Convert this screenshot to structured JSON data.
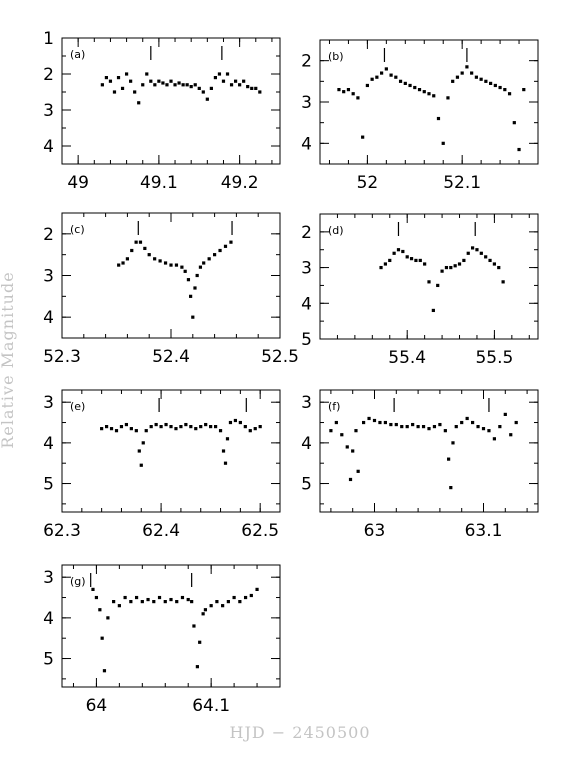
{
  "figure": {
    "xlabel": "HJD − 2450500",
    "ylabel": "Relative  Magnitude"
  },
  "chart_data": [
    {
      "type": "scatter",
      "panel": "(a)",
      "xlim": [
        48.98,
        49.25
      ],
      "ylim": [
        4.5,
        1.0
      ],
      "y_inverted": true,
      "xticks": [
        49,
        49.1,
        49.2
      ],
      "xtick_labels": [
        "49",
        "49.1",
        "49.2"
      ],
      "yticks": [
        1,
        2,
        3,
        4
      ],
      "ytick_labels": [
        "1",
        "2",
        "3",
        "4"
      ],
      "maxima_markers": [
        49.09,
        49.178
      ],
      "x": [
        49.03,
        49.035,
        49.04,
        49.045,
        49.05,
        49.055,
        49.06,
        49.065,
        49.07,
        49.075,
        49.08,
        49.085,
        49.09,
        49.095,
        49.1,
        49.105,
        49.11,
        49.115,
        49.12,
        49.125,
        49.13,
        49.135,
        49.14,
        49.145,
        49.15,
        49.155,
        49.16,
        49.165,
        49.17,
        49.175,
        49.18,
        49.185,
        49.19,
        49.195,
        49.2,
        49.205,
        49.21,
        49.215,
        49.22,
        49.225
      ],
      "y": [
        2.3,
        2.1,
        2.2,
        2.5,
        2.1,
        2.4,
        2.0,
        2.2,
        2.5,
        2.8,
        2.3,
        2.0,
        2.2,
        2.3,
        2.2,
        2.25,
        2.3,
        2.2,
        2.3,
        2.25,
        2.3,
        2.3,
        2.35,
        2.3,
        2.4,
        2.5,
        2.7,
        2.4,
        2.1,
        2.0,
        2.2,
        2.0,
        2.3,
        2.2,
        2.3,
        2.2,
        2.35,
        2.4,
        2.4,
        2.5
      ]
    },
    {
      "type": "scatter",
      "panel": "(b)",
      "xlim": [
        51.95,
        52.18
      ],
      "ylim": [
        4.5,
        1.5
      ],
      "y_inverted": true,
      "xticks": [
        52,
        52.1
      ],
      "xtick_labels": [
        "52",
        "52.1"
      ],
      "yticks": [
        2,
        3,
        4
      ],
      "ytick_labels": [
        "2",
        "3",
        "4"
      ],
      "maxima_markers": [
        52.018,
        52.105
      ],
      "x": [
        51.97,
        51.975,
        51.98,
        51.985,
        51.99,
        51.995,
        52.0,
        52.005,
        52.01,
        52.015,
        52.02,
        52.025,
        52.03,
        52.035,
        52.04,
        52.045,
        52.05,
        52.055,
        52.06,
        52.065,
        52.07,
        52.075,
        52.08,
        52.085,
        52.09,
        52.095,
        52.1,
        52.105,
        52.11,
        52.115,
        52.12,
        52.125,
        52.13,
        52.135,
        52.14,
        52.145,
        52.15,
        52.155,
        52.16,
        52.165
      ],
      "y": [
        2.7,
        2.75,
        2.7,
        2.8,
        2.9,
        3.85,
        2.6,
        2.45,
        2.4,
        2.3,
        2.2,
        2.35,
        2.4,
        2.5,
        2.55,
        2.6,
        2.65,
        2.7,
        2.75,
        2.8,
        2.85,
        3.4,
        4.0,
        2.9,
        2.5,
        2.4,
        2.3,
        2.15,
        2.3,
        2.4,
        2.45,
        2.5,
        2.55,
        2.6,
        2.65,
        2.7,
        2.8,
        3.5,
        4.15,
        2.7
      ]
    },
    {
      "type": "scatter",
      "panel": "(c)",
      "xlim": [
        52.3,
        52.5
      ],
      "ylim": [
        4.5,
        1.5
      ],
      "y_inverted": true,
      "xticks": [
        52.3,
        52.4,
        52.5
      ],
      "xtick_labels": [
        "52.3",
        "52.4",
        "52.5"
      ],
      "yticks": [
        2,
        3,
        4
      ],
      "ytick_labels": [
        "2",
        "3",
        "4"
      ],
      "maxima_markers": [
        52.37,
        52.456
      ],
      "x": [
        52.352,
        52.356,
        52.36,
        52.364,
        52.368,
        52.372,
        52.376,
        52.38,
        52.385,
        52.39,
        52.395,
        52.4,
        52.405,
        52.41,
        52.413,
        52.416,
        52.418,
        52.42,
        52.422,
        52.424,
        52.427,
        52.43,
        52.435,
        52.44,
        52.445,
        52.45,
        52.455
      ],
      "y": [
        2.75,
        2.7,
        2.6,
        2.4,
        2.2,
        2.2,
        2.35,
        2.5,
        2.6,
        2.65,
        2.7,
        2.75,
        2.75,
        2.8,
        2.9,
        3.1,
        3.5,
        4.0,
        3.3,
        3.0,
        2.8,
        2.7,
        2.6,
        2.5,
        2.4,
        2.3,
        2.2
      ]
    },
    {
      "type": "scatter",
      "panel": "(d)",
      "xlim": [
        55.3,
        55.55
      ],
      "ylim": [
        5.0,
        1.5
      ],
      "y_inverted": true,
      "xticks": [
        55.4,
        55.5
      ],
      "xtick_labels": [
        "55.4",
        "55.5"
      ],
      "yticks": [
        2,
        3,
        4,
        5
      ],
      "ytick_labels": [
        "2",
        "3",
        "4",
        "5"
      ],
      "maxima_markers": [
        55.39,
        55.478
      ],
      "x": [
        55.37,
        55.375,
        55.38,
        55.385,
        55.39,
        55.395,
        55.4,
        55.405,
        55.41,
        55.415,
        55.42,
        55.425,
        55.43,
        55.435,
        55.44,
        55.445,
        55.45,
        55.455,
        55.46,
        55.465,
        55.47,
        55.475,
        55.48,
        55.485,
        55.49,
        55.495,
        55.5,
        55.505,
        55.51
      ],
      "y": [
        3.0,
        2.9,
        2.8,
        2.6,
        2.5,
        2.55,
        2.7,
        2.75,
        2.8,
        2.8,
        2.9,
        3.4,
        4.2,
        3.5,
        3.1,
        3.0,
        3.0,
        2.95,
        2.9,
        2.8,
        2.6,
        2.45,
        2.5,
        2.6,
        2.7,
        2.8,
        2.9,
        3.0,
        3.4
      ]
    },
    {
      "type": "scatter",
      "panel": "(e)",
      "xlim": [
        62.3,
        62.52
      ],
      "ylim": [
        5.7,
        2.7
      ],
      "y_inverted": true,
      "xticks": [
        62.3,
        62.4,
        62.5
      ],
      "xtick_labels": [
        "62.3",
        "62.4",
        "62.5"
      ],
      "yticks": [
        3,
        4,
        5
      ],
      "ytick_labels": [
        "3",
        "4",
        "5"
      ],
      "maxima_markers": [
        62.398,
        62.486
      ],
      "x": [
        62.34,
        62.345,
        62.35,
        62.355,
        62.36,
        62.365,
        62.37,
        62.375,
        62.378,
        62.38,
        62.382,
        62.385,
        62.39,
        62.395,
        62.4,
        62.405,
        62.41,
        62.415,
        62.42,
        62.425,
        62.43,
        62.435,
        62.44,
        62.445,
        62.45,
        62.455,
        62.46,
        62.463,
        62.465,
        62.467,
        62.47,
        62.475,
        62.48,
        62.485,
        62.49,
        62.495,
        62.5
      ],
      "y": [
        3.65,
        3.6,
        3.65,
        3.7,
        3.6,
        3.55,
        3.65,
        3.7,
        4.2,
        4.55,
        4.0,
        3.7,
        3.6,
        3.55,
        3.6,
        3.55,
        3.6,
        3.65,
        3.6,
        3.55,
        3.6,
        3.65,
        3.6,
        3.55,
        3.6,
        3.6,
        3.7,
        4.2,
        4.5,
        3.9,
        3.5,
        3.45,
        3.5,
        3.6,
        3.7,
        3.65,
        3.6
      ]
    },
    {
      "type": "scatter",
      "panel": "(f)",
      "xlim": [
        62.95,
        63.15
      ],
      "ylim": [
        5.7,
        2.7
      ],
      "y_inverted": true,
      "xticks": [
        63,
        63.1
      ],
      "xtick_labels": [
        "63",
        "63.1"
      ],
      "yticks": [
        3,
        4,
        5
      ],
      "ytick_labels": [
        "3",
        "4",
        "5"
      ],
      "maxima_markers": [
        63.018,
        63.105
      ],
      "x": [
        62.96,
        62.965,
        62.97,
        62.975,
        62.978,
        62.98,
        62.983,
        62.985,
        62.99,
        62.995,
        63.0,
        63.005,
        63.01,
        63.015,
        63.02,
        63.025,
        63.03,
        63.035,
        63.04,
        63.045,
        63.05,
        63.055,
        63.06,
        63.065,
        63.068,
        63.07,
        63.072,
        63.075,
        63.08,
        63.085,
        63.09,
        63.095,
        63.1,
        63.105,
        63.11,
        63.115,
        63.12,
        63.125,
        63.13
      ],
      "y": [
        3.7,
        3.5,
        3.8,
        4.1,
        4.9,
        4.2,
        3.7,
        4.7,
        3.5,
        3.4,
        3.45,
        3.5,
        3.5,
        3.55,
        3.55,
        3.6,
        3.6,
        3.55,
        3.6,
        3.6,
        3.65,
        3.6,
        3.55,
        3.7,
        4.4,
        5.1,
        4.0,
        3.6,
        3.5,
        3.4,
        3.5,
        3.6,
        3.65,
        3.7,
        3.9,
        3.6,
        3.3,
        3.8,
        3.5
      ]
    },
    {
      "type": "scatter",
      "panel": "(g)",
      "xlim": [
        63.97,
        64.16
      ],
      "ylim": [
        5.7,
        2.7
      ],
      "y_inverted": true,
      "xticks": [
        64,
        64.1
      ],
      "xtick_labels": [
        "64",
        "64.1"
      ],
      "yticks": [
        3,
        4,
        5
      ],
      "ytick_labels": [
        "3",
        "4",
        "5"
      ],
      "maxima_markers": [
        63.995,
        64.083
      ],
      "x": [
        63.997,
        64.0,
        64.003,
        64.005,
        64.007,
        64.01,
        64.015,
        64.02,
        64.025,
        64.03,
        64.035,
        64.04,
        64.045,
        64.05,
        64.055,
        64.06,
        64.065,
        64.07,
        64.075,
        64.08,
        64.083,
        64.085,
        64.088,
        64.09,
        64.093,
        64.095,
        64.1,
        64.105,
        64.11,
        64.115,
        64.12,
        64.125,
        64.13,
        64.135,
        64.14
      ],
      "y": [
        3.3,
        3.5,
        3.8,
        4.5,
        5.3,
        4.0,
        3.6,
        3.7,
        3.5,
        3.6,
        3.5,
        3.6,
        3.55,
        3.6,
        3.5,
        3.6,
        3.55,
        3.6,
        3.5,
        3.55,
        3.6,
        4.2,
        5.2,
        4.6,
        3.9,
        3.8,
        3.7,
        3.6,
        3.7,
        3.6,
        3.5,
        3.6,
        3.5,
        3.45,
        3.3
      ]
    }
  ]
}
